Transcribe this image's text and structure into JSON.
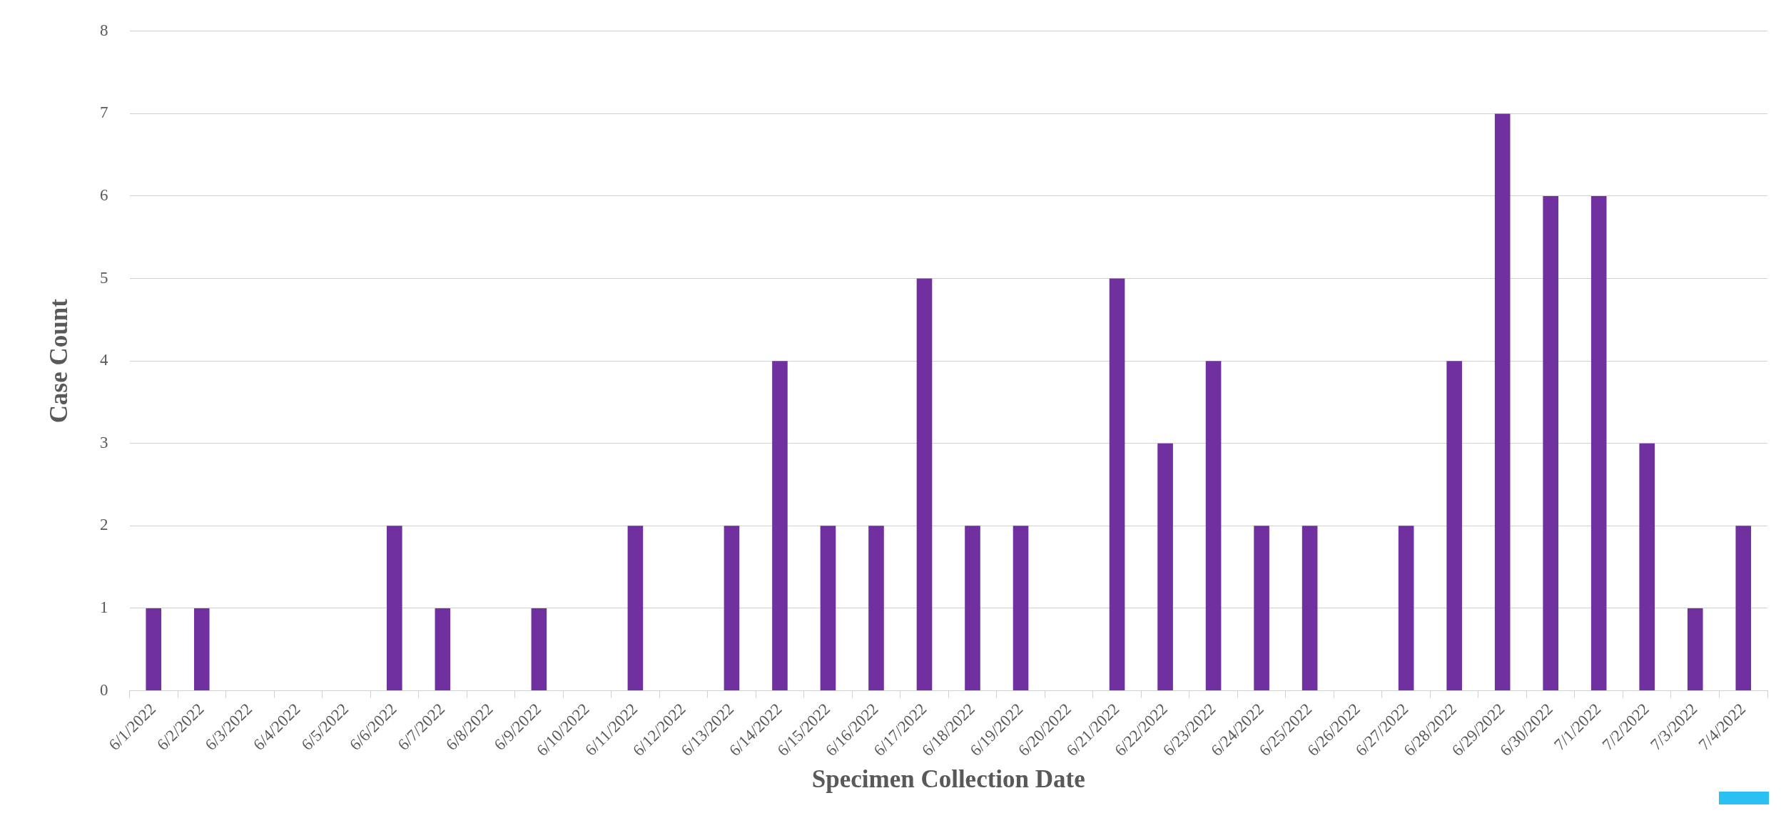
{
  "chart_data": {
    "type": "bar",
    "xlabel": "Specimen Collection Date",
    "ylabel": "Case Count",
    "categories": [
      "6/1/2022",
      "6/2/2022",
      "6/3/2022",
      "6/4/2022",
      "6/5/2022",
      "6/6/2022",
      "6/7/2022",
      "6/8/2022",
      "6/9/2022",
      "6/10/2022",
      "6/11/2022",
      "6/12/2022",
      "6/13/2022",
      "6/14/2022",
      "6/15/2022",
      "6/16/2022",
      "6/17/2022",
      "6/18/2022",
      "6/19/2022",
      "6/20/2022",
      "6/21/2022",
      "6/22/2022",
      "6/23/2022",
      "6/24/2022",
      "6/25/2022",
      "6/26/2022",
      "6/27/2022",
      "6/28/2022",
      "6/29/2022",
      "6/30/2022",
      "7/1/2022",
      "7/2/2022",
      "7/3/2022",
      "7/4/2022"
    ],
    "values": [
      1,
      1,
      0,
      0,
      0,
      2,
      1,
      0,
      1,
      0,
      2,
      0,
      2,
      4,
      2,
      2,
      5,
      2,
      2,
      0,
      5,
      3,
      4,
      2,
      2,
      0,
      2,
      4,
      7,
      6,
      6,
      3,
      1,
      2
    ],
    "color": "#7030a0",
    "ylim": [
      0,
      8
    ],
    "yticks": [
      0,
      1,
      2,
      3,
      4,
      5,
      6,
      7,
      8
    ],
    "grid": "y",
    "legend": false
  }
}
